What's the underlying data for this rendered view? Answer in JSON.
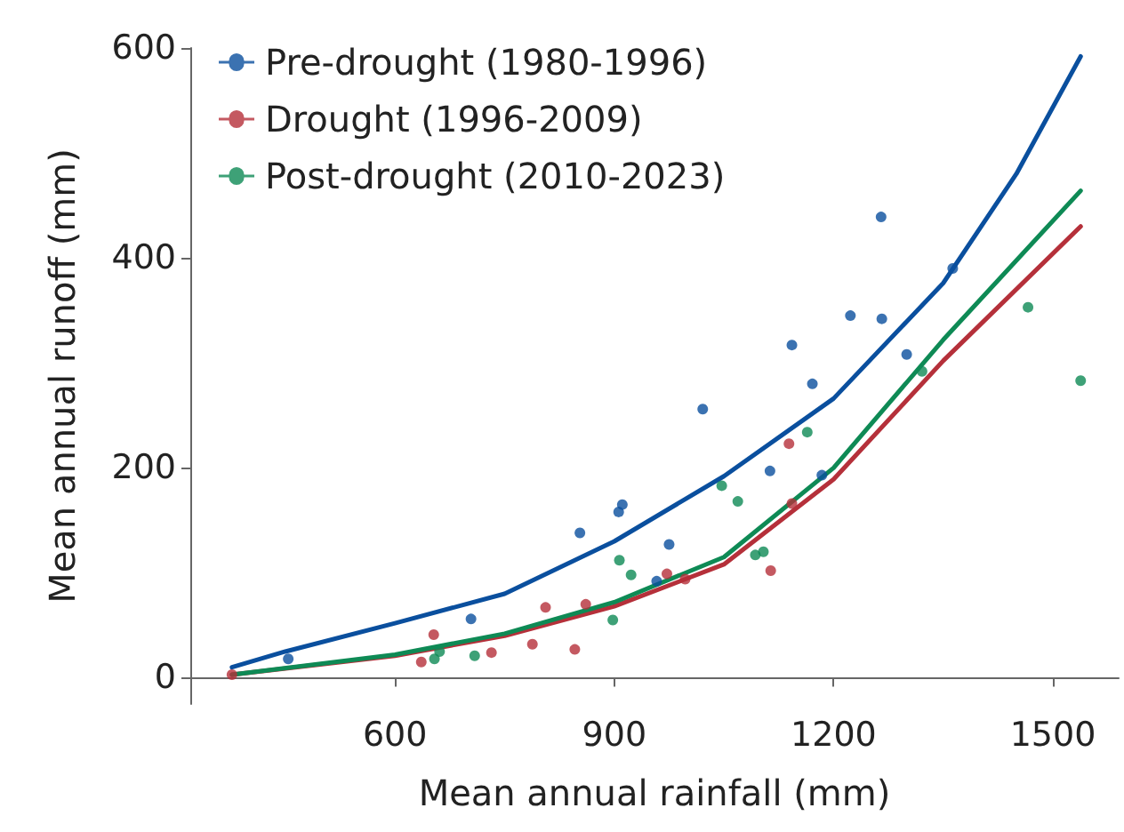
{
  "chart_data": {
    "type": "scatter",
    "xlabel": "Mean annual rainfall (mm)",
    "ylabel": "Mean annual runoff (mm)",
    "xlim": [
      320,
      1590
    ],
    "xticks": [
      600,
      900,
      1200,
      1500
    ],
    "ylim": [
      -25,
      600
    ],
    "yticks": [
      0,
      200,
      400,
      600
    ],
    "grid": false,
    "legend": "top left",
    "marker": "circle",
    "series": [
      {
        "name": "Pre-drought (1980-1996)",
        "color": "#0a4f9e",
        "x": [
          454,
          704,
          853,
          906,
          911,
          975,
          958,
          1021,
          1143,
          1171,
          1113,
          1184,
          1223,
          1266,
          1265,
          1300,
          1363
        ],
        "values": [
          18,
          56,
          138,
          158,
          165,
          127,
          92,
          256,
          317,
          280,
          197,
          193,
          345,
          342,
          439,
          308,
          390
        ]
      },
      {
        "name": "Drought (1996-2009)",
        "color": "#b5303a",
        "x": [
          377,
          636,
          653,
          732,
          788,
          806,
          846,
          861,
          972,
          997,
          1114,
          1143,
          1139
        ],
        "values": [
          3,
          15,
          41,
          24,
          32,
          67,
          27,
          70,
          99,
          94,
          102,
          166,
          223
        ]
      },
      {
        "name": "Post-drought (2010-2023)",
        "color": "#0e8a55",
        "x": [
          654,
          661,
          709,
          898,
          907,
          923,
          1047,
          1069,
          1093,
          1104,
          1164,
          1321,
          1466,
          1538
        ],
        "values": [
          18,
          25,
          21,
          55,
          112,
          98,
          183,
          168,
          117,
          120,
          234,
          292,
          353,
          283
        ]
      },
      {
        "type": "line",
        "marker": "none",
        "color": "#0a4f9e",
        "x": [
          377,
          450,
          600,
          750,
          900,
          1050,
          1200,
          1350,
          1450,
          1538
        ],
        "values": [
          10,
          25,
          52,
          80,
          130,
          192,
          266,
          376,
          480,
          592
        ]
      },
      {
        "type": "line",
        "marker": "none",
        "color": "#b5303a",
        "x": [
          377,
          600,
          750,
          900,
          1050,
          1200,
          1350,
          1538
        ],
        "values": [
          3,
          21,
          40,
          68,
          108,
          189,
          302,
          430
        ]
      },
      {
        "type": "line",
        "marker": "none",
        "color": "#0e8a55",
        "x": [
          377,
          600,
          750,
          900,
          1050,
          1200,
          1350,
          1538
        ],
        "values": [
          3,
          22,
          42,
          72,
          115,
          200,
          322,
          464
        ]
      }
    ]
  }
}
